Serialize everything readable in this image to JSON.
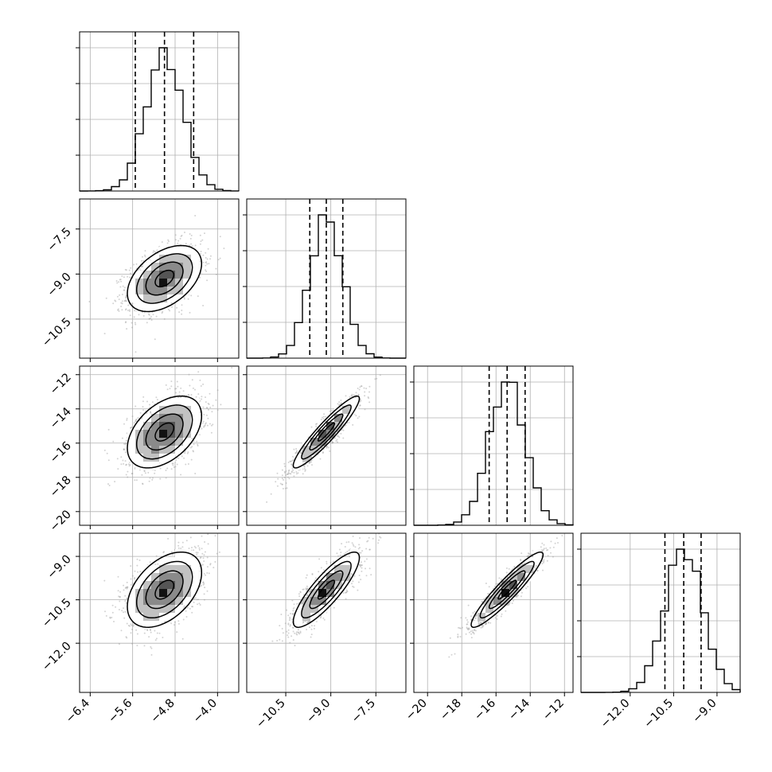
{
  "chart_data": {
    "type": "corner",
    "grid": true,
    "parameters": [
      {
        "range": [
          -6.6,
          -3.6
        ],
        "ticks": [
          "-6.4",
          "-5.6",
          "-4.8",
          "-4.0"
        ],
        "tick_values": [
          -6.4,
          -5.6,
          -4.8,
          -4.0
        ],
        "quantiles": [
          -5.55,
          -5.0,
          -4.45
        ],
        "mean": -5.0,
        "sd": 0.35
      },
      {
        "range": [
          -11.8,
          -6.5
        ],
        "ticks": [
          "-10.5",
          "-9.0",
          "-7.5"
        ],
        "tick_values": [
          -10.5,
          -9.0,
          -7.5
        ],
        "quantiles": [
          -9.7,
          -9.15,
          -8.6
        ],
        "mean": -9.15,
        "sd": 0.55
      },
      {
        "range": [
          -20.8,
          -11.5
        ],
        "ticks": [
          "-20",
          "-18",
          "-16",
          "-14",
          "-12"
        ],
        "tick_values": [
          -20,
          -18,
          -16,
          -14,
          -12
        ],
        "quantiles": [
          -16.4,
          -15.35,
          -14.3
        ],
        "mean": -15.35,
        "sd": 1.05
      },
      {
        "range": [
          -13.7,
          -8.2
        ],
        "ticks": [
          "-12.0",
          "-10.5",
          "-9.0"
        ],
        "tick_values": [
          -12.0,
          -10.5,
          -9.0
        ],
        "quantiles": [
          -10.8,
          -10.15,
          -9.55
        ],
        "mean": -10.15,
        "sd": 0.65
      }
    ],
    "pairs": [
      {
        "row": 1,
        "col": 0,
        "rho": 0.45
      },
      {
        "row": 2,
        "col": 0,
        "rho": 0.45
      },
      {
        "row": 2,
        "col": 1,
        "rho": 0.93
      },
      {
        "row": 3,
        "col": 0,
        "rho": 0.45
      },
      {
        "row": 3,
        "col": 1,
        "rho": 0.85
      },
      {
        "row": 3,
        "col": 2,
        "rho": 0.93
      }
    ],
    "contour_levels_sigma": [
      0.5,
      1.0,
      1.5,
      2.0
    ]
  }
}
